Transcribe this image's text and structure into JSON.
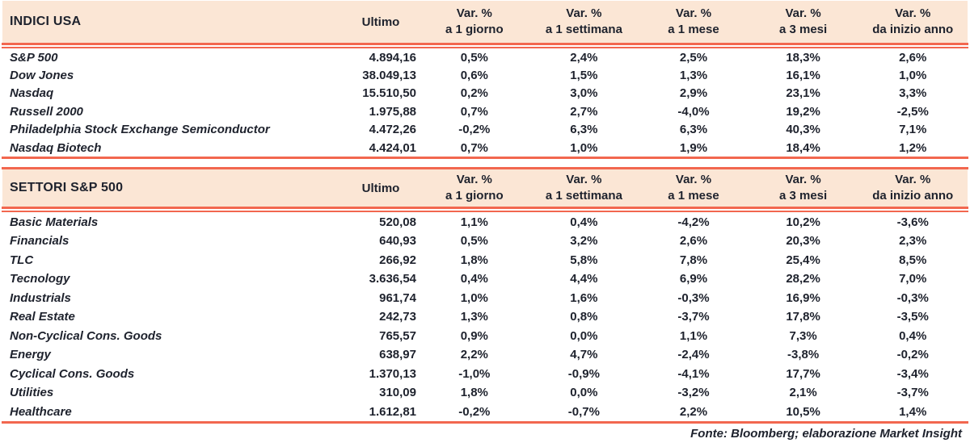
{
  "colors": {
    "band_bg": "#FBE6D5",
    "rule": "#F2674F",
    "text": "#1E222D"
  },
  "footer": "Fonte: Bloomberg; elaborazione Market Insight",
  "chart_data": {
    "type": "table",
    "tables": [
      {
        "title": "INDICI USA",
        "value_header": "Ultimo",
        "var_header": "Var. %",
        "period_headers": [
          "a 1 giorno",
          "a 1 settimana",
          "a 1 mese",
          "a 3 mesi",
          "da inizio anno"
        ],
        "rows": [
          {
            "label": "S&P 500",
            "ultimo": "4.894,16",
            "values": [
              "0,5%",
              "2,4%",
              "2,5%",
              "18,3%",
              "2,6%"
            ]
          },
          {
            "label": "Dow Jones",
            "ultimo": "38.049,13",
            "values": [
              "0,6%",
              "1,5%",
              "1,3%",
              "16,1%",
              "1,0%"
            ]
          },
          {
            "label": "Nasdaq",
            "ultimo": "15.510,50",
            "values": [
              "0,2%",
              "3,0%",
              "2,9%",
              "23,1%",
              "3,3%"
            ]
          },
          {
            "label": "Russell 2000",
            "ultimo": "1.975,88",
            "values": [
              "0,7%",
              "2,7%",
              "-4,0%",
              "19,2%",
              "-2,5%"
            ]
          },
          {
            "label": "Philadelphia Stock Exchange Semiconductor",
            "ultimo": "4.472,26",
            "values": [
              "-0,2%",
              "6,3%",
              "6,3%",
              "40,3%",
              "7,1%"
            ]
          },
          {
            "label": "Nasdaq Biotech",
            "ultimo": "4.424,01",
            "values": [
              "0,7%",
              "1,0%",
              "1,9%",
              "18,4%",
              "1,2%"
            ]
          }
        ]
      },
      {
        "title": "SETTORI S&P 500",
        "value_header": "Ultimo",
        "var_header": "Var. %",
        "period_headers": [
          "a 1 giorno",
          "a 1 settimana",
          "a 1 mese",
          "a 3 mesi",
          "da inizio anno"
        ],
        "rows": [
          {
            "label": "Basic Materials",
            "ultimo": "520,08",
            "values": [
              "1,1%",
              "0,4%",
              "-4,2%",
              "10,2%",
              "-3,6%"
            ]
          },
          {
            "label": "Financials",
            "ultimo": "640,93",
            "values": [
              "0,5%",
              "3,2%",
              "2,6%",
              "20,3%",
              "2,3%"
            ]
          },
          {
            "label": "TLC",
            "ultimo": "266,92",
            "values": [
              "1,8%",
              "5,8%",
              "7,8%",
              "25,4%",
              "8,5%"
            ]
          },
          {
            "label": "Tecnology",
            "ultimo": "3.636,54",
            "values": [
              "0,4%",
              "4,4%",
              "6,9%",
              "28,2%",
              "7,0%"
            ]
          },
          {
            "label": "Industrials",
            "ultimo": "961,74",
            "values": [
              "1,0%",
              "1,6%",
              "-0,3%",
              "16,9%",
              "-0,3%"
            ]
          },
          {
            "label": "Real Estate",
            "ultimo": "242,73",
            "values": [
              "1,3%",
              "0,8%",
              "-3,7%",
              "17,8%",
              "-3,5%"
            ]
          },
          {
            "label": "Non-Cyclical Cons. Goods",
            "ultimo": "765,57",
            "values": [
              "0,9%",
              "0,0%",
              "1,1%",
              "7,3%",
              "0,4%"
            ]
          },
          {
            "label": "Energy",
            "ultimo": "638,97",
            "values": [
              "2,2%",
              "4,7%",
              "-2,4%",
              "-3,8%",
              "-0,2%"
            ]
          },
          {
            "label": "Cyclical Cons. Goods",
            "ultimo": "1.370,13",
            "values": [
              "-1,0%",
              "-0,9%",
              "-4,1%",
              "17,7%",
              "-3,4%"
            ]
          },
          {
            "label": "Utilities",
            "ultimo": "310,09",
            "values": [
              "1,8%",
              "0,0%",
              "-3,2%",
              "2,1%",
              "-3,7%"
            ]
          },
          {
            "label": "Healthcare",
            "ultimo": "1.612,81",
            "values": [
              "-0,2%",
              "-0,7%",
              "2,2%",
              "10,5%",
              "1,4%"
            ]
          }
        ]
      }
    ]
  }
}
